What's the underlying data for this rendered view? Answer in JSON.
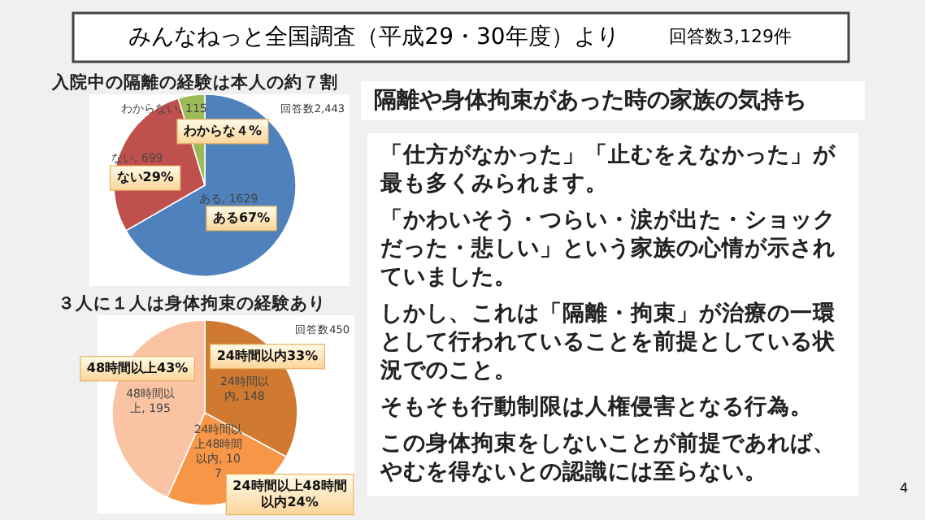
{
  "chart_data": [
    {
      "type": "other",
      "title": "みんなねっと全国調査（平成29・30年度）より",
      "annotations": [
        "回答数3,129件",
        "4"
      ]
    },
    {
      "type": "pie",
      "title": "入院中の隔離の経験は本人の約７割",
      "categories": [
        "ある",
        "ない",
        "わからない"
      ],
      "values": [
        1629,
        699,
        115
      ],
      "colors": [
        "#4f81bd",
        "#c0504d",
        "#9bbb59"
      ],
      "value_labels": [
        ", 1629",
        ", 699",
        ", 115"
      ],
      "annotations": [
        "回答数2,443",
        {
          "text": "ある67%",
          "x": "ある"
        },
        {
          "text": "ない29%",
          "x": "ない"
        },
        {
          "text": "わからな４%",
          "x": "わからない"
        }
      ]
    },
    {
      "type": "pie",
      "title": "３人に１人は身体拘束の経験あり",
      "categories": [
        "24時間以内",
        "24時間以上48時間以内",
        "48時間以上"
      ],
      "values": [
        148,
        107,
        195
      ],
      "colors": [
        "#cf7a30",
        "#f79646",
        "#fac3a3"
      ],
      "value_labels": [
        ", 148",
        ", 107",
        ", 195"
      ],
      "annotations": [
        "回答数450",
        {
          "text": "24時間以内33%",
          "x": "24時間以内"
        },
        {
          "text": "24時間以上48時間以内24%",
          "x": "24時間以上48時間以内"
        },
        {
          "text": "48時間以上43%",
          "x": "48時間以上"
        }
      ]
    },
    {
      "type": "other",
      "title": "隔離や身体拘束があった時の家族の気持ち",
      "annotations": [
        "「仕方がなかった」「止むをえなかった」が最も多くみられます。",
        "「かわいそう・つらい・涙が出た・ショックだった・悲しい」という家族の心情が示されていました。",
        "しかし、これは「隔離・拘束」が治療の一環として行われていることを前提としている状況でのこと。",
        "そもそも行動制限は人権侵害となる行為。",
        "この身体拘束をしないことが前提であれば、やむを得ないとの認識には至らない。"
      ]
    }
  ]
}
